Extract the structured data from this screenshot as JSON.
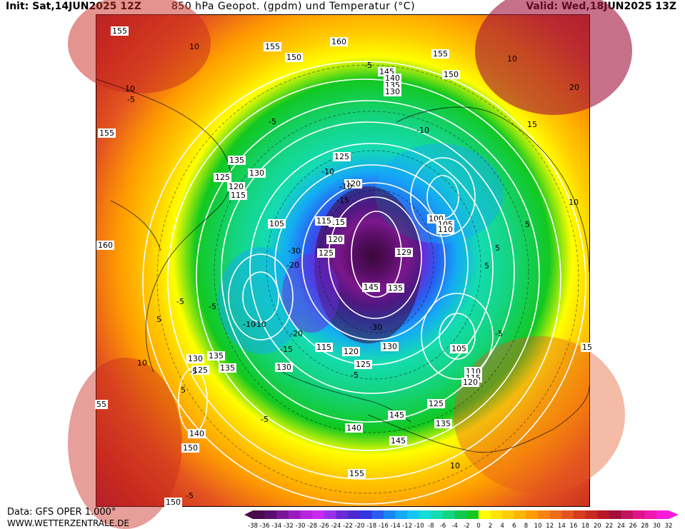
{
  "header": {
    "init": "Init: Sat,14JUN2025 12Z",
    "title": "850 hPa Geopot. (gpdm) und Temperatur (°C)",
    "valid": "Valid: Wed,18JUN2025 13Z"
  },
  "footer": {
    "data_source": "Data: GFS OPER 1.000°",
    "website": "WWW.WETTERZENTRALE.DE"
  },
  "legend": {
    "ticks": [
      "-38",
      "-36",
      "-34",
      "-32",
      "-30",
      "-28",
      "-26",
      "-24",
      "-22",
      "-20",
      "-18",
      "-16",
      "-14",
      "-12",
      "-10",
      "-8",
      "-6",
      "-4",
      "-2",
      "0",
      "2",
      "4",
      "6",
      "8",
      "10",
      "12",
      "14",
      "16",
      "18",
      "20",
      "22",
      "24",
      "26",
      "28",
      "30",
      "32"
    ],
    "colors": [
      "#4a0a4a",
      "#5a0e6e",
      "#7a1496",
      "#9a1cc0",
      "#b822e0",
      "#c92af0",
      "#9a30e8",
      "#6a2ad8",
      "#4a2ad0",
      "#3434e0",
      "#2a5cf0",
      "#1a86f5",
      "#14aaf5",
      "#12c8f0",
      "#14dcd8",
      "#14dcb0",
      "#14d480",
      "#10c850",
      "#12c820",
      "#ffff00",
      "#ffe400",
      "#ffcc00",
      "#ffb400",
      "#ff9c00",
      "#f88410",
      "#f06c18",
      "#e45420",
      "#d63c20",
      "#c82a20",
      "#b81828",
      "#a0103a",
      "#c01460",
      "#e0148a",
      "#f018b0",
      "#f81cd8"
    ]
  },
  "map": {
    "contour_labels": [
      {
        "text": "155"
      },
      {
        "text": "155"
      },
      {
        "text": "150"
      },
      {
        "text": "160"
      },
      {
        "text": "155"
      },
      {
        "text": "150"
      },
      {
        "text": "145"
      },
      {
        "text": "140"
      },
      {
        "text": "135"
      },
      {
        "text": "130"
      },
      {
        "text": "155"
      },
      {
        "text": "135"
      },
      {
        "text": "130"
      },
      {
        "text": "125"
      },
      {
        "text": "120"
      },
      {
        "text": "115"
      },
      {
        "text": "125"
      },
      {
        "text": "120"
      },
      {
        "text": "115"
      },
      {
        "text": "105"
      },
      {
        "text": "115"
      },
      {
        "text": "120"
      },
      {
        "text": "125"
      },
      {
        "text": "100"
      },
      {
        "text": "105"
      },
      {
        "text": "110"
      },
      {
        "text": "129"
      },
      {
        "text": "145"
      },
      {
        "text": "135"
      },
      {
        "text": "160"
      },
      {
        "text": "130"
      },
      {
        "text": "135"
      },
      {
        "text": "135"
      },
      {
        "text": "125"
      },
      {
        "text": "130"
      },
      {
        "text": "115"
      },
      {
        "text": "120"
      },
      {
        "text": "125"
      },
      {
        "text": "130"
      },
      {
        "text": "105"
      },
      {
        "text": "110"
      },
      {
        "text": "115"
      },
      {
        "text": "120"
      },
      {
        "text": "125"
      },
      {
        "text": "135"
      },
      {
        "text": "145"
      },
      {
        "text": "140"
      },
      {
        "text": "150"
      },
      {
        "text": "140"
      },
      {
        "text": "145"
      },
      {
        "text": "155"
      },
      {
        "text": "150"
      },
      {
        "text": "55"
      },
      {
        "text": "15"
      }
    ],
    "temp_labels": [
      {
        "text": "10"
      },
      {
        "text": "-5"
      },
      {
        "text": "10"
      },
      {
        "text": "-5"
      },
      {
        "text": "-10"
      },
      {
        "text": "-5"
      },
      {
        "text": "-10"
      },
      {
        "text": "-10"
      },
      {
        "text": "-15"
      },
      {
        "text": "-20"
      },
      {
        "text": "-30"
      },
      {
        "text": "-10"
      },
      {
        "text": "-20"
      },
      {
        "text": "-15"
      },
      {
        "text": "-30"
      },
      {
        "text": "-5"
      },
      {
        "text": "-10"
      },
      {
        "text": "-5"
      },
      {
        "text": "5"
      },
      {
        "text": "-5"
      },
      {
        "text": "10"
      },
      {
        "text": "5"
      },
      {
        "text": "-5"
      },
      {
        "text": "-5"
      },
      {
        "text": "10"
      },
      {
        "text": "15"
      },
      {
        "text": "20"
      },
      {
        "text": "10"
      },
      {
        "text": "5"
      },
      {
        "text": "5"
      },
      {
        "text": "-5"
      },
      {
        "text": "10"
      },
      {
        "text": "5"
      },
      {
        "text": "-5"
      }
    ]
  }
}
